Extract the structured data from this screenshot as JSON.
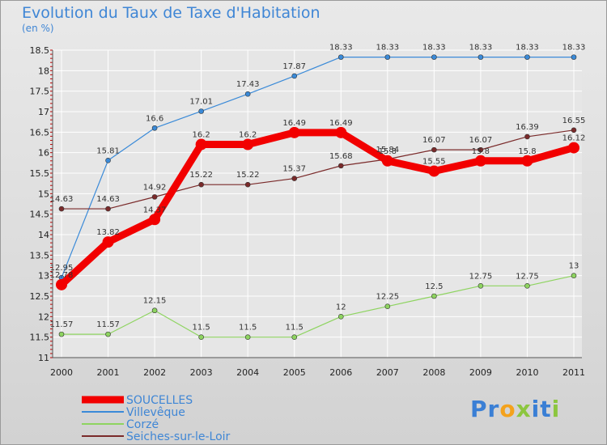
{
  "title": "Evolution du Taux de Taxe d'Habitation",
  "subtitle": "(en %)",
  "logo": {
    "text": "Proxiti",
    "letters": [
      "P",
      "r",
      "o",
      "x",
      "i",
      "t",
      "i"
    ],
    "colors": [
      "#3a7fd5",
      "#3a7fd5",
      "#f4a21c",
      "#8cc63f",
      "#3a7fd5",
      "#3a7fd5",
      "#8cc63f"
    ]
  },
  "chart_data": {
    "type": "line",
    "x": [
      "2000",
      "2001",
      "2002",
      "2003",
      "2004",
      "2005",
      "2006",
      "2007",
      "2008",
      "2009",
      "2010",
      "2011"
    ],
    "ylim": [
      11,
      18.5
    ],
    "yticks": [
      11,
      11.5,
      12,
      12.5,
      13,
      13.5,
      14,
      14.5,
      15,
      15.5,
      16,
      16.5,
      17,
      17.5,
      18,
      18.5
    ],
    "ytick_labels": [
      "11",
      "11.5",
      "12",
      "12.5",
      "13",
      "13.5",
      "14",
      "14.5",
      "15",
      "15.5",
      "16",
      "16.5",
      "17",
      "17.5",
      "18",
      "18.5"
    ],
    "legend_position": "bottom-left",
    "series": [
      {
        "name": "Villevêque",
        "color": "#3a8ad8",
        "values": [
          12.95,
          15.81,
          16.6,
          17.01,
          17.43,
          17.87,
          18.33,
          18.33,
          18.33,
          18.33,
          18.33,
          18.33
        ],
        "labels": [
          "12.95",
          "15.81",
          "16.6",
          "17.01",
          "17.43",
          "17.87",
          "18.33",
          "18.33",
          "18.33",
          "18.33",
          "18.33",
          "18.33"
        ]
      },
      {
        "name": "Corzé",
        "color": "#8ed460",
        "values": [
          11.57,
          11.57,
          12.15,
          11.5,
          11.5,
          11.5,
          12,
          12.25,
          12.5,
          12.75,
          12.75,
          13
        ],
        "labels": [
          "11.57",
          "11.57",
          "12.15",
          "11.5",
          "11.5",
          "11.5",
          "12",
          "12.25",
          "12.5",
          "12.75",
          "12.75",
          "13"
        ]
      },
      {
        "name": "Seiches-sur-le-Loir",
        "color": "#7a2a2a",
        "values": [
          14.63,
          14.63,
          14.92,
          15.22,
          15.22,
          15.37,
          15.68,
          15.84,
          16.07,
          16.07,
          16.39,
          16.55
        ],
        "labels": [
          "14.63",
          "14.63",
          "14.92",
          "15.22",
          "15.22",
          "15.37",
          "15.68",
          "15.84",
          "16.07",
          "16.07",
          "16.39",
          "16.55"
        ]
      },
      {
        "name": "SOUCELLES",
        "color": "#f20000",
        "values": [
          12.78,
          13.82,
          14.37,
          16.2,
          16.2,
          16.49,
          16.49,
          15.8,
          15.55,
          15.8,
          15.8,
          16.12
        ],
        "labels": [
          "12.78",
          "13.82",
          "14.37",
          "16.2",
          "16.2",
          "16.49",
          "16.49",
          "15.8",
          "15.55",
          "15.8",
          "15.8",
          "16.12"
        ]
      }
    ],
    "legend": [
      "SOUCELLES",
      "Villevêque",
      "Corzé",
      "Seiches-sur-le-Loir"
    ]
  }
}
